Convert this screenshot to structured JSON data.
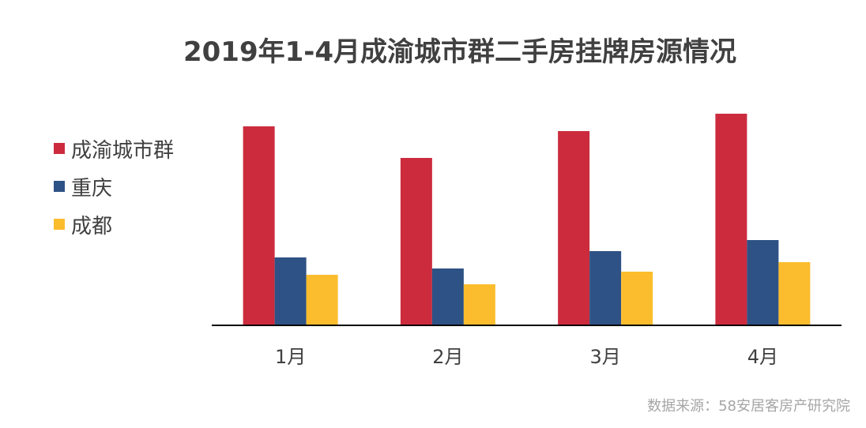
{
  "chart_data": {
    "type": "bar",
    "title": "2019年1-4月成渝城市群二手房挂牌房源情况",
    "categories": [
      "1月",
      "2月",
      "3月",
      "4月"
    ],
    "series": [
      {
        "name": "成渝城市群",
        "color": "#cc2b3e",
        "values": [
          252,
          212,
          246,
          268
        ]
      },
      {
        "name": "重庆",
        "color": "#2e5285",
        "values": [
          86,
          72,
          94,
          108
        ]
      },
      {
        "name": "成都",
        "color": "#fbbd2d",
        "values": [
          64,
          52,
          68,
          80
        ]
      }
    ],
    "xlabel": "",
    "ylabel": "",
    "ylim": [
      0,
      270
    ],
    "grid": false,
    "legend_position": "left"
  },
  "source": "数据来源：58安居客房产研究院"
}
